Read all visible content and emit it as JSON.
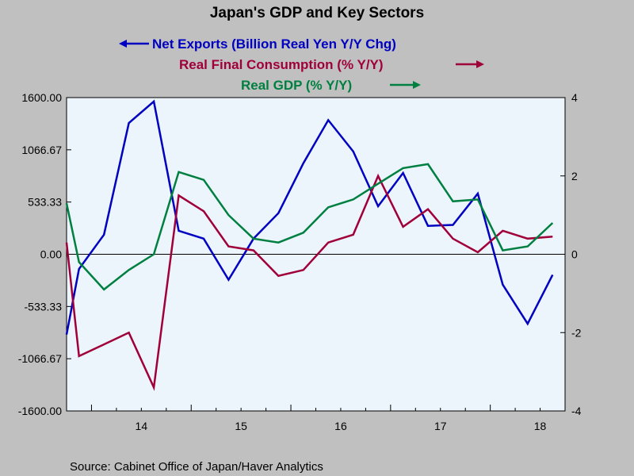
{
  "chart_data": {
    "type": "line",
    "title": "Japan's GDP and Key Sectors",
    "source": "Source:  Cabinet Office of Japan/Haver Analytics",
    "x_tick_labels": [
      "14",
      "15",
      "16",
      "17",
      "18"
    ],
    "x_tick_years": [
      2014,
      2015,
      2016,
      2017,
      2018
    ],
    "x_range": [
      2013.75,
      2018.75
    ],
    "left_axis": {
      "ylim": [
        -1600,
        1600
      ],
      "tick_values": [
        1600,
        1066.67,
        533.33,
        0,
        -533.33,
        -1066.67,
        -1600
      ],
      "tick_labels": [
        "1600.00",
        "1066.67",
        "533.33",
        "0.00",
        "-533.33",
        "-1066.67",
        "-1600.00"
      ]
    },
    "right_axis": {
      "ylim": [
        -4,
        4
      ],
      "tick_values": [
        4,
        2,
        0,
        -2,
        -4
      ],
      "tick_labels": [
        "4",
        "2",
        "0",
        "-2",
        "-4"
      ]
    },
    "series": [
      {
        "name": "Net Exports (Billion Real Yen Y/Y Chg)",
        "axis": "left",
        "legend_arrow": "left",
        "color": "#0000c0",
        "x": [
          2013.75,
          2013.875,
          2014.125,
          2014.375,
          2014.625,
          2014.875,
          2015.125,
          2015.375,
          2015.625,
          2015.875,
          2016.125,
          2016.375,
          2016.625,
          2016.875,
          2017.125,
          2017.375,
          2017.625,
          2017.875,
          2018.125,
          2018.375,
          2018.625
        ],
        "values": [
          -820,
          -150,
          200,
          1340,
          1560,
          240,
          160,
          -260,
          160,
          420,
          930,
          1370,
          1050,
          490,
          830,
          290,
          300,
          620,
          -310,
          -710,
          -210
        ]
      },
      {
        "name": "Real Final Consumption (% Y/Y)",
        "axis": "right",
        "legend_arrow": "right",
        "color": "#a0003a",
        "x": [
          2013.75,
          2013.875,
          2014.125,
          2014.375,
          2014.625,
          2014.875,
          2015.125,
          2015.375,
          2015.625,
          2015.875,
          2016.125,
          2016.375,
          2016.625,
          2016.875,
          2017.125,
          2017.375,
          2017.625,
          2017.875,
          2018.125,
          2018.375,
          2018.625
        ],
        "values": [
          0.3,
          -2.6,
          -2.3,
          -2.0,
          -3.4,
          1.5,
          1.1,
          0.2,
          0.1,
          -0.55,
          -0.4,
          0.3,
          0.5,
          2.0,
          0.7,
          1.15,
          0.4,
          0.05,
          0.6,
          0.4,
          0.45
        ]
      },
      {
        "name": "Real GDP (% Y/Y)",
        "axis": "right",
        "legend_arrow": "right",
        "color": "#008040",
        "x": [
          2013.75,
          2013.875,
          2014.125,
          2014.375,
          2014.625,
          2014.875,
          2015.125,
          2015.375,
          2015.625,
          2015.875,
          2016.125,
          2016.375,
          2016.625,
          2016.875,
          2017.125,
          2017.375,
          2017.625,
          2017.875,
          2018.125,
          2018.375,
          2018.625
        ],
        "values": [
          1.3,
          -0.2,
          -0.9,
          -0.4,
          0.0,
          2.1,
          1.9,
          1.0,
          0.4,
          0.3,
          0.55,
          1.2,
          1.4,
          1.8,
          2.2,
          2.3,
          1.35,
          1.4,
          0.1,
          0.2,
          0.8
        ]
      }
    ],
    "colors": {
      "plot_bg": "#ecf4fc",
      "page_bg": "#c0c0c0",
      "title": "#000000"
    },
    "grid": false
  }
}
